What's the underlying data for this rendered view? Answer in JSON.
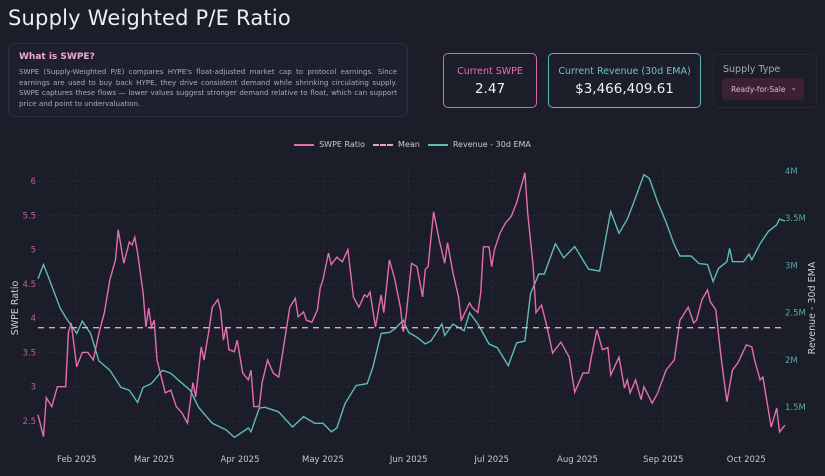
{
  "title": "Supply Weighted P/E Ratio",
  "info": {
    "heading": "What is SWPE?",
    "text": "SWPE (Supply-Weighted P/E) compares HYPE's float-adjusted market cap to protocol earnings. Since earnings are used to buy back HYPE, they drive consistent demand while shrinking circulating supply. SWPE captures these flows — lower values suggest stronger demand relative to float, which can support price and point to undervaluation."
  },
  "stats": {
    "swpe_label": "Current SWPE",
    "swpe_value": "2.47",
    "revenue_label": "Current Revenue (30d EMA)",
    "revenue_value": "$3,466,409.61"
  },
  "supply_type": {
    "label": "Supply Type",
    "selected": "Ready-for-Sale"
  },
  "colors": {
    "swpe": "#e46db0",
    "mean": "#e9a0c8",
    "revenue": "#5fbcb0",
    "background": "#1b1d28"
  },
  "chart_data": {
    "type": "line",
    "legend": [
      "SWPE Ratio",
      "Mean",
      "Revenue - 30d EMA"
    ],
    "legend_position": "top-center",
    "ylabel": "SWPE Ratio",
    "y2label": "Revenue - 30d EMA",
    "grid": true,
    "xlim": [
      "2025-01-18",
      "2025-10-15"
    ],
    "ylim": [
      2.15,
      6.16
    ],
    "y2lim": [
      1.1,
      4.01
    ],
    "x_ticks": [
      {
        "date": "2025-02-01",
        "label": "Feb 2025"
      },
      {
        "date": "2025-03-01",
        "label": "Mar 2025"
      },
      {
        "date": "2025-04-01",
        "label": "Apr 2025"
      },
      {
        "date": "2025-05-01",
        "label": "May 2025"
      },
      {
        "date": "2025-06-01",
        "label": "Jun 2025"
      },
      {
        "date": "2025-07-01",
        "label": "Jul 2025"
      },
      {
        "date": "2025-08-01",
        "label": "Aug 2025"
      },
      {
        "date": "2025-09-01",
        "label": "Sep 2025"
      },
      {
        "date": "2025-10-01",
        "label": "Oct 2025"
      }
    ],
    "y_ticks": [
      {
        "value": 2.5,
        "label": "2.5"
      },
      {
        "value": 3,
        "label": "3"
      },
      {
        "value": 3.5,
        "label": "3.5"
      },
      {
        "value": 4,
        "label": "4"
      },
      {
        "value": 4.5,
        "label": "4.5"
      },
      {
        "value": 5,
        "label": "5"
      },
      {
        "value": 5.5,
        "label": "5.5"
      },
      {
        "value": 6,
        "label": "6"
      }
    ],
    "y2_ticks": [
      {
        "value": 1.5,
        "label": "1.5M"
      },
      {
        "value": 2,
        "label": "2M"
      },
      {
        "value": 2.5,
        "label": "2.5M"
      },
      {
        "value": 3,
        "label": "3M"
      },
      {
        "value": 3.5,
        "label": "3.5M"
      },
      {
        "value": 4,
        "label": "4M"
      }
    ],
    "mean": 3.86,
    "series": [
      {
        "name": "SWPE Ratio",
        "axis": "left",
        "points": [
          [
            "2025-01-18",
            2.59
          ],
          [
            "2025-01-20",
            2.27
          ],
          [
            "2025-01-21",
            2.84
          ],
          [
            "2025-01-23",
            2.71
          ],
          [
            "2025-01-25",
            3.0
          ],
          [
            "2025-01-28",
            3.0
          ],
          [
            "2025-01-29",
            3.79
          ],
          [
            "2025-01-30",
            3.93
          ],
          [
            "2025-02-01",
            3.29
          ],
          [
            "2025-02-03",
            3.5
          ],
          [
            "2025-02-05",
            3.5
          ],
          [
            "2025-02-07",
            3.39
          ],
          [
            "2025-02-09",
            3.78
          ],
          [
            "2025-02-11",
            4.08
          ],
          [
            "2025-02-13",
            4.56
          ],
          [
            "2025-02-15",
            4.85
          ],
          [
            "2025-02-16",
            5.29
          ],
          [
            "2025-02-18",
            4.8
          ],
          [
            "2025-02-20",
            5.11
          ],
          [
            "2025-02-21",
            5.07
          ],
          [
            "2025-02-22",
            5.18
          ],
          [
            "2025-02-23",
            4.95
          ],
          [
            "2025-02-25",
            4.37
          ],
          [
            "2025-02-26",
            3.87
          ],
          [
            "2025-02-27",
            4.15
          ],
          [
            "2025-02-28",
            3.87
          ],
          [
            "2025-03-01",
            3.97
          ],
          [
            "2025-03-02",
            3.39
          ],
          [
            "2025-03-05",
            2.91
          ],
          [
            "2025-03-07",
            2.95
          ],
          [
            "2025-03-09",
            2.71
          ],
          [
            "2025-03-11",
            2.62
          ],
          [
            "2025-03-13",
            2.47
          ],
          [
            "2025-03-15",
            3.06
          ],
          [
            "2025-03-16",
            2.85
          ],
          [
            "2025-03-18",
            3.58
          ],
          [
            "2025-03-19",
            3.39
          ],
          [
            "2025-03-21",
            3.87
          ],
          [
            "2025-03-22",
            4.16
          ],
          [
            "2025-03-24",
            4.27
          ],
          [
            "2025-03-25",
            4.12
          ],
          [
            "2025-03-26",
            3.68
          ],
          [
            "2025-03-27",
            3.87
          ],
          [
            "2025-03-28",
            3.54
          ],
          [
            "2025-03-30",
            3.51
          ],
          [
            "2025-03-31",
            3.68
          ],
          [
            "2025-04-02",
            3.2
          ],
          [
            "2025-04-04",
            3.1
          ],
          [
            "2025-04-05",
            3.24
          ],
          [
            "2025-04-06",
            2.71
          ],
          [
            "2025-04-08",
            2.71
          ],
          [
            "2025-04-09",
            3.06
          ],
          [
            "2025-04-11",
            3.39
          ],
          [
            "2025-04-13",
            3.2
          ],
          [
            "2025-04-15",
            3.14
          ],
          [
            "2025-04-17",
            3.64
          ],
          [
            "2025-04-19",
            4.16
          ],
          [
            "2025-04-21",
            4.29
          ],
          [
            "2025-04-22",
            4.02
          ],
          [
            "2025-04-24",
            4.09
          ],
          [
            "2025-04-25",
            3.97
          ],
          [
            "2025-04-27",
            3.94
          ],
          [
            "2025-04-29",
            4.12
          ],
          [
            "2025-04-30",
            4.44
          ],
          [
            "2025-05-01",
            4.56
          ],
          [
            "2025-05-03",
            4.95
          ],
          [
            "2025-05-04",
            4.78
          ],
          [
            "2025-05-06",
            4.89
          ],
          [
            "2025-05-08",
            4.82
          ],
          [
            "2025-05-10",
            5.0
          ],
          [
            "2025-05-12",
            4.31
          ],
          [
            "2025-05-14",
            4.16
          ],
          [
            "2025-05-16",
            4.34
          ],
          [
            "2025-05-17",
            4.31
          ],
          [
            "2025-05-18",
            4.38
          ],
          [
            "2025-05-20",
            3.87
          ],
          [
            "2025-05-22",
            4.34
          ],
          [
            "2025-05-23",
            4.08
          ],
          [
            "2025-05-25",
            4.85
          ],
          [
            "2025-05-27",
            4.56
          ],
          [
            "2025-05-29",
            4.16
          ],
          [
            "2025-05-30",
            3.8
          ],
          [
            "2025-05-31",
            4.02
          ],
          [
            "2025-06-02",
            4.8
          ],
          [
            "2025-06-04",
            4.75
          ],
          [
            "2025-06-06",
            4.31
          ],
          [
            "2025-06-07",
            4.71
          ],
          [
            "2025-06-08",
            4.75
          ],
          [
            "2025-06-10",
            5.55
          ],
          [
            "2025-06-12",
            5.14
          ],
          [
            "2025-06-14",
            4.8
          ],
          [
            "2025-06-15",
            5.1
          ],
          [
            "2025-06-17",
            4.66
          ],
          [
            "2025-06-19",
            4.31
          ],
          [
            "2025-06-20",
            3.97
          ],
          [
            "2025-06-23",
            4.22
          ],
          [
            "2025-06-24",
            4.15
          ],
          [
            "2025-06-26",
            4.08
          ],
          [
            "2025-06-27",
            4.37
          ],
          [
            "2025-06-28",
            5.04
          ],
          [
            "2025-06-30",
            5.04
          ],
          [
            "2025-07-01",
            4.75
          ],
          [
            "2025-07-02",
            5.0
          ],
          [
            "2025-07-04",
            5.24
          ],
          [
            "2025-07-06",
            5.39
          ],
          [
            "2025-07-08",
            5.48
          ],
          [
            "2025-07-10",
            5.68
          ],
          [
            "2025-07-13",
            6.12
          ],
          [
            "2025-07-14",
            5.53
          ],
          [
            "2025-07-16",
            4.75
          ],
          [
            "2025-07-17",
            4.08
          ],
          [
            "2025-07-19",
            4.19
          ],
          [
            "2025-07-21",
            3.87
          ],
          [
            "2025-07-23",
            3.49
          ],
          [
            "2025-07-26",
            3.65
          ],
          [
            "2025-07-29",
            3.43
          ],
          [
            "2025-07-31",
            2.92
          ],
          [
            "2025-08-03",
            3.2
          ],
          [
            "2025-08-05",
            3.2
          ],
          [
            "2025-08-06",
            3.43
          ],
          [
            "2025-08-08",
            3.83
          ],
          [
            "2025-08-10",
            3.54
          ],
          [
            "2025-08-12",
            3.57
          ],
          [
            "2025-08-13",
            3.17
          ],
          [
            "2025-08-16",
            3.43
          ],
          [
            "2025-08-18",
            2.98
          ],
          [
            "2025-08-19",
            3.1
          ],
          [
            "2025-08-20",
            2.91
          ],
          [
            "2025-08-22",
            3.1
          ],
          [
            "2025-08-24",
            2.81
          ],
          [
            "2025-08-25",
            3.0
          ],
          [
            "2025-08-28",
            2.76
          ],
          [
            "2025-08-30",
            2.91
          ],
          [
            "2025-09-02",
            3.24
          ],
          [
            "2025-09-05",
            3.39
          ],
          [
            "2025-09-07",
            3.97
          ],
          [
            "2025-09-10",
            4.16
          ],
          [
            "2025-09-12",
            3.93
          ],
          [
            "2025-09-13",
            3.97
          ],
          [
            "2025-09-15",
            4.27
          ],
          [
            "2025-09-17",
            4.41
          ],
          [
            "2025-09-18",
            4.24
          ],
          [
            "2025-09-20",
            4.12
          ],
          [
            "2025-09-22",
            3.39
          ],
          [
            "2025-09-24",
            2.78
          ],
          [
            "2025-09-26",
            3.24
          ],
          [
            "2025-09-28",
            3.35
          ],
          [
            "2025-10-01",
            3.61
          ],
          [
            "2025-10-03",
            3.58
          ],
          [
            "2025-10-04",
            3.39
          ],
          [
            "2025-10-06",
            3.1
          ],
          [
            "2025-10-07",
            3.14
          ],
          [
            "2025-10-10",
            2.41
          ],
          [
            "2025-10-12",
            2.69
          ],
          [
            "2025-10-13",
            2.34
          ],
          [
            "2025-10-15",
            2.44
          ]
        ]
      },
      {
        "name": "Revenue - 30d EMA",
        "axis": "right",
        "unit": "M",
        "points": [
          [
            "2025-01-18",
            2.86
          ],
          [
            "2025-01-20",
            3.01
          ],
          [
            "2025-01-22",
            2.86
          ],
          [
            "2025-01-26",
            2.55
          ],
          [
            "2025-01-28",
            2.45
          ],
          [
            "2025-02-01",
            2.28
          ],
          [
            "2025-02-03",
            2.41
          ],
          [
            "2025-02-06",
            2.28
          ],
          [
            "2025-02-09",
            1.99
          ],
          [
            "2025-02-13",
            1.89
          ],
          [
            "2025-02-17",
            1.71
          ],
          [
            "2025-02-20",
            1.68
          ],
          [
            "2025-02-23",
            1.55
          ],
          [
            "2025-02-25",
            1.71
          ],
          [
            "2025-02-28",
            1.75
          ],
          [
            "2025-03-04",
            1.89
          ],
          [
            "2025-03-07",
            1.86
          ],
          [
            "2025-03-10",
            1.78
          ],
          [
            "2025-03-14",
            1.68
          ],
          [
            "2025-03-17",
            1.5
          ],
          [
            "2025-03-22",
            1.33
          ],
          [
            "2025-03-27",
            1.26
          ],
          [
            "2025-03-30",
            1.18
          ],
          [
            "2025-04-04",
            1.28
          ],
          [
            "2025-04-05",
            1.24
          ],
          [
            "2025-04-08",
            1.49
          ],
          [
            "2025-04-10",
            1.5
          ],
          [
            "2025-04-15",
            1.45
          ],
          [
            "2025-04-20",
            1.29
          ],
          [
            "2025-04-24",
            1.4
          ],
          [
            "2025-04-28",
            1.33
          ],
          [
            "2025-05-01",
            1.33
          ],
          [
            "2025-05-04",
            1.24
          ],
          [
            "2025-05-06",
            1.28
          ],
          [
            "2025-05-09",
            1.54
          ],
          [
            "2025-05-13",
            1.73
          ],
          [
            "2025-05-17",
            1.75
          ],
          [
            "2025-05-19",
            1.92
          ],
          [
            "2025-05-22",
            2.28
          ],
          [
            "2025-05-25",
            2.29
          ],
          [
            "2025-05-27",
            2.33
          ],
          [
            "2025-05-30",
            2.42
          ],
          [
            "2025-06-01",
            2.29
          ],
          [
            "2025-06-04",
            2.24
          ],
          [
            "2025-06-07",
            2.17
          ],
          [
            "2025-06-09",
            2.2
          ],
          [
            "2025-06-13",
            2.38
          ],
          [
            "2025-06-14",
            2.26
          ],
          [
            "2025-06-17",
            2.38
          ],
          [
            "2025-06-21",
            2.31
          ],
          [
            "2025-06-23",
            2.5
          ],
          [
            "2025-06-26",
            2.38
          ],
          [
            "2025-06-30",
            2.17
          ],
          [
            "2025-07-03",
            2.13
          ],
          [
            "2025-07-07",
            1.94
          ],
          [
            "2025-07-10",
            2.18
          ],
          [
            "2025-07-13",
            2.2
          ],
          [
            "2025-07-15",
            2.7
          ],
          [
            "2025-07-18",
            2.91
          ],
          [
            "2025-07-20",
            2.91
          ],
          [
            "2025-07-23",
            3.15
          ],
          [
            "2025-07-24",
            3.23
          ],
          [
            "2025-07-27",
            3.08
          ],
          [
            "2025-07-31",
            3.2
          ],
          [
            "2025-08-05",
            2.96
          ],
          [
            "2025-08-09",
            2.94
          ],
          [
            "2025-08-13",
            3.57
          ],
          [
            "2025-08-16",
            3.34
          ],
          [
            "2025-08-19",
            3.49
          ],
          [
            "2025-08-21",
            3.64
          ],
          [
            "2025-08-25",
            3.96
          ],
          [
            "2025-08-27",
            3.92
          ],
          [
            "2025-08-30",
            3.67
          ],
          [
            "2025-09-02",
            3.46
          ],
          [
            "2025-09-05",
            3.22
          ],
          [
            "2025-09-07",
            3.1
          ],
          [
            "2025-09-11",
            3.1
          ],
          [
            "2025-09-14",
            3.02
          ],
          [
            "2025-09-17",
            3.01
          ],
          [
            "2025-09-19",
            2.83
          ],
          [
            "2025-09-21",
            2.97
          ],
          [
            "2025-09-24",
            3.04
          ],
          [
            "2025-09-25",
            3.18
          ],
          [
            "2025-09-26",
            3.04
          ],
          [
            "2025-09-30",
            3.04
          ],
          [
            "2025-10-02",
            3.12
          ],
          [
            "2025-10-03",
            3.06
          ],
          [
            "2025-10-06",
            3.23
          ],
          [
            "2025-10-09",
            3.36
          ],
          [
            "2025-10-12",
            3.43
          ],
          [
            "2025-10-13",
            3.49
          ],
          [
            "2025-10-15",
            3.47
          ]
        ]
      }
    ]
  }
}
